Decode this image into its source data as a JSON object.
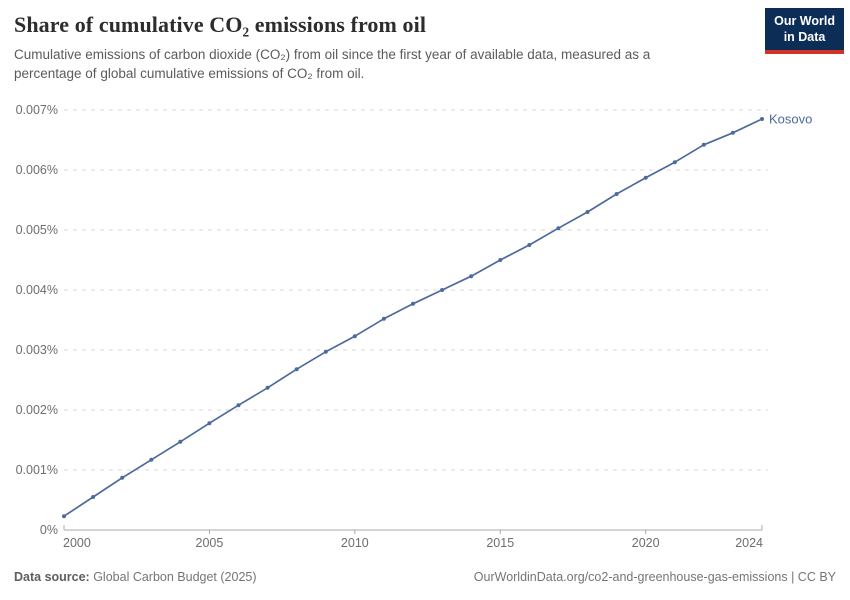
{
  "header": {
    "title": "Share of cumulative CO₂ emissions from oil",
    "subtitle": "Cumulative emissions of carbon dioxide (CO₂) from oil since the first year of available data, measured as a percentage of global cumulative emissions of CO₂ from oil.",
    "logo_line1": "Our World",
    "logo_line2": "in Data"
  },
  "footer": {
    "source_label": "Data source:",
    "source_value": " Global Carbon Budget (2025)",
    "attribution": "OurWorldinData.org/co2-and-greenhouse-gas-emissions | CC BY"
  },
  "colors": {
    "line": "#4c6a9c",
    "entity_label": "#4c6a9c",
    "grid": "#d8d8d8",
    "axis": "#a8a8a8",
    "tick_label": "#6e6e6e",
    "logo_bg": "#0c2d56",
    "logo_stripe": "#d13328"
  },
  "chart_data": {
    "type": "line",
    "title": "Share of cumulative CO₂ emissions from oil",
    "entity_label": "Kosovo",
    "series": [
      {
        "name": "Kosovo",
        "x": [
          2000,
          2001,
          2002,
          2003,
          2004,
          2005,
          2006,
          2007,
          2008,
          2009,
          2010,
          2011,
          2012,
          2013,
          2014,
          2015,
          2016,
          2017,
          2018,
          2019,
          2020,
          2021,
          2022,
          2023,
          2024
        ],
        "values": [
          0.00023,
          0.00055,
          0.00087,
          0.00117,
          0.00147,
          0.00178,
          0.00208,
          0.00237,
          0.00268,
          0.00297,
          0.00323,
          0.00352,
          0.00377,
          0.004,
          0.00423,
          0.0045,
          0.00475,
          0.00503,
          0.0053,
          0.0056,
          0.00587,
          0.00613,
          0.00642,
          0.00662,
          0.00685
        ]
      }
    ],
    "x_range": [
      2000,
      2024
    ],
    "ylim": [
      0,
      0.007
    ],
    "unit": "%",
    "grid": "dashed horizontal",
    "y_ticks": [
      {
        "value": 0,
        "label": "0%"
      },
      {
        "value": 0.001,
        "label": "0.001%"
      },
      {
        "value": 0.002,
        "label": "0.002%"
      },
      {
        "value": 0.003,
        "label": "0.003%"
      },
      {
        "value": 0.004,
        "label": "0.004%"
      },
      {
        "value": 0.005,
        "label": "0.005%"
      },
      {
        "value": 0.006,
        "label": "0.006%"
      },
      {
        "value": 0.007,
        "label": "0.007%"
      }
    ],
    "x_ticks": [
      {
        "value": 2000,
        "label": "2000"
      },
      {
        "value": 2005,
        "label": "2005"
      },
      {
        "value": 2010,
        "label": "2010"
      },
      {
        "value": 2015,
        "label": "2015"
      },
      {
        "value": 2020,
        "label": "2020"
      },
      {
        "value": 2024,
        "label": "2024"
      }
    ]
  }
}
